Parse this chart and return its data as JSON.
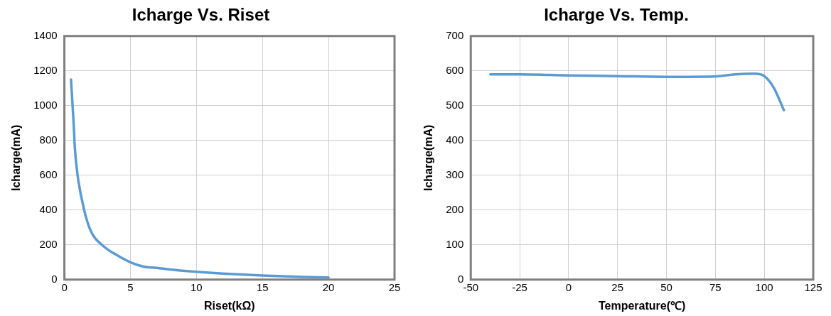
{
  "chart_data": [
    {
      "type": "line",
      "title": "Icharge Vs. Riset",
      "xlabel": "Riset(kΩ)",
      "ylabel": "Icharge(mA)",
      "xlim": [
        0,
        25
      ],
      "xticks": [
        0,
        5,
        10,
        15,
        20,
        25
      ],
      "ylim": [
        0,
        1400
      ],
      "yticks": [
        0,
        200,
        400,
        600,
        800,
        1000,
        1200,
        1400
      ],
      "grid": true,
      "marker": "none",
      "line_style": "solid",
      "series": [
        {
          "color": "#5b9bd5",
          "x": [
            0.5,
            0.7,
            0.8,
            1,
            1.5,
            2,
            3,
            4,
            5,
            6,
            7,
            8,
            10,
            12,
            15,
            18,
            20
          ],
          "values": [
            1150,
            900,
            750,
            600,
            400,
            280,
            190,
            140,
            100,
            75,
            68,
            58,
            45,
            35,
            24,
            16,
            12
          ]
        }
      ]
    },
    {
      "type": "line",
      "title": "Icharge Vs. Temp.",
      "xlabel": "Temperature(℃)",
      "ylabel": "Icharge(mA)",
      "xlim": [
        -50,
        125
      ],
      "xticks": [
        -50,
        -25,
        0,
        25,
        50,
        75,
        100,
        125
      ],
      "ylim": [
        0,
        700
      ],
      "yticks": [
        0,
        100,
        200,
        300,
        400,
        500,
        600,
        700
      ],
      "grid": true,
      "marker": "none",
      "line_style": "solid",
      "series": [
        {
          "color": "#5b9bd5",
          "x": [
            -40,
            -25,
            0,
            25,
            50,
            75,
            85,
            95,
            100,
            105,
            110
          ],
          "values": [
            590,
            590,
            587,
            585,
            583,
            584,
            590,
            592,
            585,
            550,
            487
          ]
        }
      ]
    }
  ]
}
